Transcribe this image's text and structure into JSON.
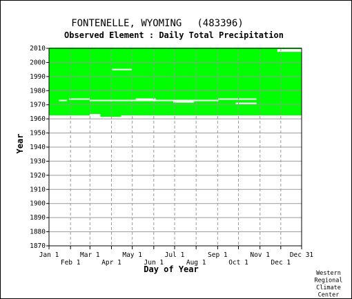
{
  "header": {
    "station": "FONTENELLE, WYOMING",
    "station_id": "(483396)",
    "subtitle": "Observed Element : Daily Total Precipitation"
  },
  "credit": [
    "Western",
    "Regional",
    "Climate",
    "Center"
  ],
  "colors": {
    "data": "#00ff00",
    "gap": "#ffffff",
    "grid": "#999999",
    "frame": "#000000"
  },
  "chart_data": {
    "type": "heatmap",
    "title": "FONTENELLE, WYOMING (483396)",
    "subtitle": "Observed Element : Daily Total Precipitation",
    "xlabel": "Day of Year",
    "ylabel": "Year",
    "x_ticks_top_row": [
      "Jan 1",
      "Mar 1",
      "May 1",
      "Jul 1",
      "Sep 1",
      "Nov 1",
      "Dec 31"
    ],
    "x_ticks_bottom_row": [
      "Feb 1",
      "Apr 1",
      "Jun 1",
      "Aug 1",
      "Oct 1",
      "Dec 1"
    ],
    "month_start_days": [
      1,
      32,
      60,
      91,
      121,
      152,
      182,
      213,
      244,
      274,
      305,
      335,
      365
    ],
    "y_ticks": [
      1870,
      1880,
      1890,
      1900,
      1910,
      1920,
      1930,
      1940,
      1950,
      1960,
      1970,
      1980,
      1990,
      2000,
      2010
    ],
    "xlim": [
      1,
      365
    ],
    "ylim": [
      1870,
      2010
    ],
    "grid": true,
    "coverage": {
      "first_year": 1962,
      "last_year": 2010,
      "start_day": 1,
      "end_day": 365
    },
    "gaps": [
      {
        "year": 1962,
        "day_start": 1,
        "day_end": 60
      },
      {
        "year": 1962,
        "day_start": 60,
        "day_end": 75
      },
      {
        "year": 1962,
        "day_start": 105,
        "day_end": 365
      },
      {
        "year": 1963,
        "day_start": 60,
        "day_end": 75
      },
      {
        "year": 1973,
        "day_start": 15,
        "day_end": 27
      },
      {
        "year": 1973,
        "day_start": 60,
        "day_end": 245
      },
      {
        "year": 1974,
        "day_start": 30,
        "day_end": 60
      },
      {
        "year": 1974,
        "day_start": 126,
        "day_end": 155
      },
      {
        "year": 1974,
        "day_start": 245,
        "day_end": 300
      },
      {
        "year": 1972,
        "day_start": 180,
        "day_end": 210
      },
      {
        "year": 1971,
        "day_start": 270,
        "day_end": 300
      },
      {
        "year": 1995,
        "day_start": 92,
        "day_end": 120
      },
      {
        "year": 2008,
        "day_start": 330,
        "day_end": 365
      },
      {
        "year": 2009,
        "day_start": 330,
        "day_end": 365
      }
    ]
  }
}
